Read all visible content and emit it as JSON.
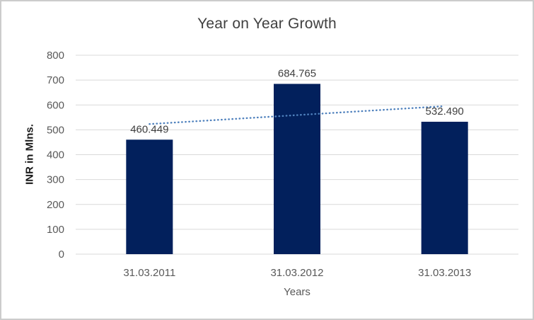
{
  "chart_data": {
    "type": "bar",
    "title": "Year on Year Growth",
    "xlabel": "Years",
    "ylabel": "INR in Mlns.",
    "categories": [
      "31.03.2011",
      "31.03.2012",
      "31.03.2013"
    ],
    "values": [
      460.449,
      684.765,
      532.49
    ],
    "data_labels": [
      "460.449",
      "684.765",
      "532.490"
    ],
    "ylim": [
      0,
      800
    ],
    "yticks": [
      0,
      100,
      200,
      300,
      400,
      500,
      600,
      700,
      800
    ],
    "grid": true,
    "legend": "none",
    "bar_color": "#02205C",
    "trendline": {
      "type": "linear",
      "style": "dotted",
      "color": "#4F81BD",
      "start_value": 523.2,
      "end_value": 595.3
    }
  },
  "colors": {
    "background": "#FFFFFF",
    "border": "#CCCCCC",
    "grid": "#D9D9D9",
    "axis_line": "#D9D9D9",
    "tick_text": "#595959",
    "title_text": "#404040",
    "data_label_text": "#404040",
    "x_axis_title_text": "#595959",
    "y_axis_title_text": "#1A1A1A"
  }
}
